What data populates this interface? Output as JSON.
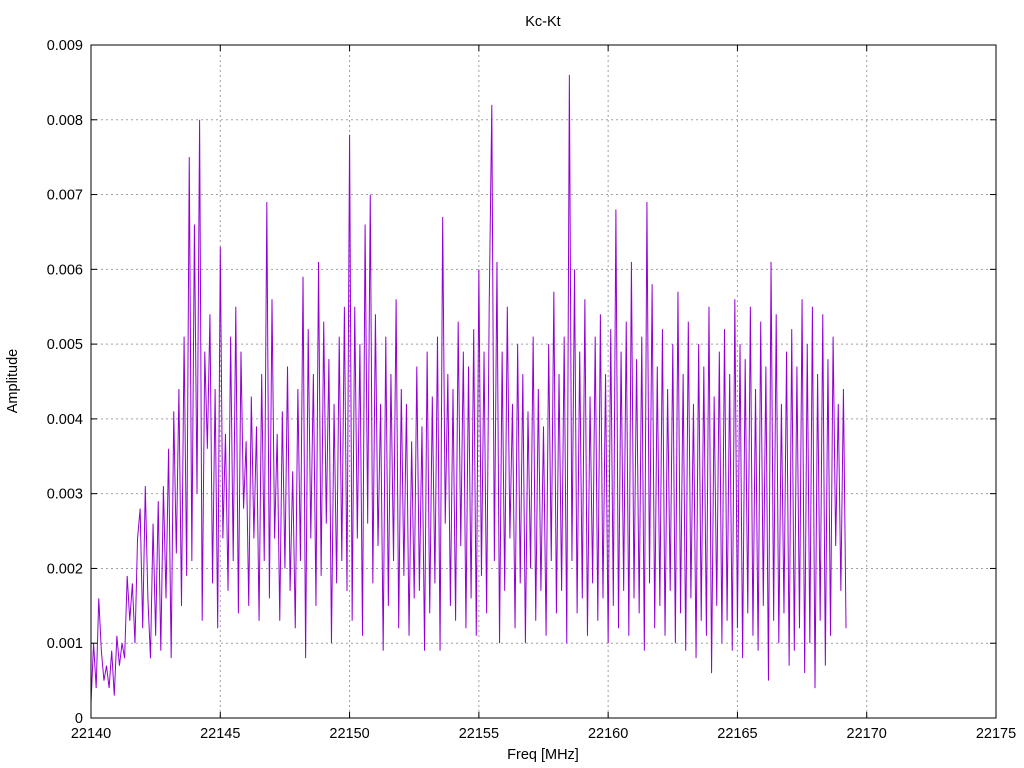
{
  "chart_data": {
    "type": "line",
    "title": "Kc-Kt",
    "xlabel": "Freq [MHz]",
    "ylabel": "Amplitude",
    "xlim": [
      22140,
      22175
    ],
    "ylim": [
      0,
      0.009
    ],
    "xticks": [
      "22140",
      "22145",
      "22150",
      "22155",
      "22160",
      "22165",
      "22170",
      "22175"
    ],
    "yticks": [
      "0",
      "0.001",
      "0.002",
      "0.003",
      "0.004",
      "0.005",
      "0.006",
      "0.007",
      "0.008",
      "0.009"
    ],
    "grid": true,
    "series": [
      {
        "color": "#9400d3",
        "x_start": 22140.0,
        "x_step": 0.1,
        "values": [
          0.0002,
          0.001,
          0.0004,
          0.0016,
          0.0009,
          0.0005,
          0.0007,
          0.0004,
          0.0009,
          0.0003,
          0.0011,
          0.0007,
          0.001,
          0.0008,
          0.0019,
          0.0013,
          0.0018,
          0.001,
          0.0024,
          0.0028,
          0.0012,
          0.0031,
          0.0016,
          0.0008,
          0.0026,
          0.0011,
          0.0029,
          0.0009,
          0.0031,
          0.0016,
          0.0036,
          0.0008,
          0.0041,
          0.0022,
          0.0044,
          0.0015,
          0.0051,
          0.0019,
          0.0075,
          0.0021,
          0.0066,
          0.003,
          0.008,
          0.0013,
          0.0049,
          0.0036,
          0.0054,
          0.0018,
          0.0044,
          0.0012,
          0.0063,
          0.0024,
          0.0038,
          0.0017,
          0.0051,
          0.0021,
          0.0055,
          0.0014,
          0.0049,
          0.0028,
          0.0037,
          0.0015,
          0.0043,
          0.0024,
          0.0039,
          0.0013,
          0.0046,
          0.0021,
          0.0069,
          0.0016,
          0.0056,
          0.0024,
          0.0038,
          0.0013,
          0.0041,
          0.002,
          0.0047,
          0.0017,
          0.0033,
          0.0012,
          0.0044,
          0.0021,
          0.0059,
          0.0008,
          0.0052,
          0.0024,
          0.0046,
          0.0015,
          0.0061,
          0.0019,
          0.0053,
          0.0026,
          0.0048,
          0.001,
          0.0042,
          0.0018,
          0.0051,
          0.0021,
          0.0055,
          0.0017,
          0.0078,
          0.0013,
          0.0055,
          0.0024,
          0.005,
          0.0011,
          0.0066,
          0.0026,
          0.007,
          0.0018,
          0.0054,
          0.0023,
          0.0042,
          0.0009,
          0.0051,
          0.0015,
          0.0046,
          0.0021,
          0.0056,
          0.0012,
          0.0044,
          0.0019,
          0.0042,
          0.0011,
          0.0037,
          0.0016,
          0.0047,
          0.0017,
          0.0039,
          0.0009,
          0.0049,
          0.0014,
          0.0043,
          0.0018,
          0.0051,
          0.0009,
          0.0067,
          0.0026,
          0.0046,
          0.0015,
          0.0044,
          0.0013,
          0.0053,
          0.0023,
          0.0049,
          0.0012,
          0.0047,
          0.0016,
          0.0052,
          0.0011,
          0.006,
          0.0019,
          0.0049,
          0.0014,
          0.0055,
          0.0082,
          0.0021,
          0.0061,
          0.001,
          0.0049,
          0.0017,
          0.0055,
          0.0024,
          0.0042,
          0.0012,
          0.005,
          0.0018,
          0.0046,
          0.001,
          0.0041,
          0.002,
          0.0051,
          0.0013,
          0.0044,
          0.0017,
          0.0039,
          0.0011,
          0.005,
          0.0021,
          0.0057,
          0.0014,
          0.0046,
          0.0017,
          0.0051,
          0.001,
          0.0086,
          0.0021,
          0.006,
          0.0014,
          0.0049,
          0.0016,
          0.0056,
          0.0011,
          0.0043,
          0.0018,
          0.0051,
          0.0013,
          0.0054,
          0.0016,
          0.0046,
          0.001,
          0.0052,
          0.0015,
          0.0068,
          0.0012,
          0.0049,
          0.0017,
          0.0053,
          0.0011,
          0.0061,
          0.0016,
          0.0048,
          0.0014,
          0.0051,
          0.0009,
          0.0069,
          0.0018,
          0.0058,
          0.0012,
          0.0047,
          0.0015,
          0.0052,
          0.0011,
          0.0044,
          0.0017,
          0.005,
          0.001,
          0.0057,
          0.0014,
          0.0046,
          0.0009,
          0.0053,
          0.0016,
          0.0042,
          0.0008,
          0.005,
          0.0013,
          0.0047,
          0.0011,
          0.0055,
          0.0006,
          0.0043,
          0.0015,
          0.0049,
          0.001,
          0.0052,
          0.0013,
          0.0046,
          0.0009,
          0.0056,
          0.0012,
          0.005,
          0.0008,
          0.0048,
          0.0014,
          0.0055,
          0.0011,
          0.0044,
          0.0009,
          0.0053,
          0.0015,
          0.0047,
          0.0005,
          0.0061,
          0.0013,
          0.0054,
          0.001,
          0.0042,
          0.0014,
          0.0049,
          0.0007,
          0.0052,
          0.0009,
          0.0047,
          0.0012,
          0.0056,
          0.0006,
          0.005,
          0.001,
          0.0055,
          0.0004,
          0.0046,
          0.0013,
          0.0054,
          0.0007,
          0.0048,
          0.0011,
          0.0051,
          0.0023,
          0.0042,
          0.0017,
          0.0044,
          0.0012
        ]
      }
    ]
  }
}
